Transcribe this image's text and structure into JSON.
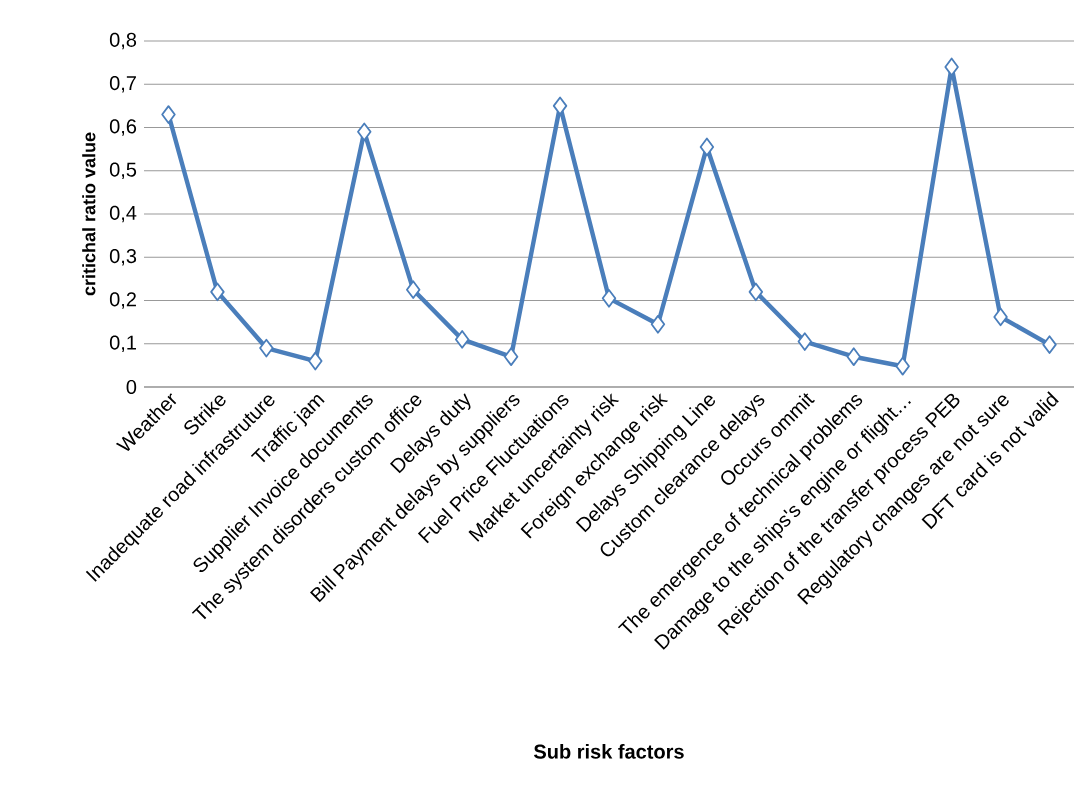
{
  "chart_data": {
    "type": "line",
    "xlabel": "Sub risk factors",
    "ylabel": "critichal ratio value",
    "categories": [
      "Weather",
      "Strike",
      "Inadequate road infrastruture",
      "Traffic jam",
      "Supplier Invoice documents",
      "The system disorders custom office",
      "Delays duty",
      "Bill Payment delays by suppliers",
      "Fuel Price Fluctuations",
      "Market uncertainty risk",
      "Foreign exchange risk",
      "Delays Shipping Line",
      "Custom clearance delays",
      "Occurs ommit",
      "The emergence of technical problems",
      "Damage to the ships's engine or flight…",
      "Rejection of the transfer process PEB",
      "Regulatory changes are not sure",
      "DFT card is not valid"
    ],
    "series": [
      {
        "color": "#4a7ebb",
        "values": [
          0.63,
          0.22,
          0.09,
          0.06,
          0.59,
          0.225,
          0.11,
          0.07,
          0.65,
          0.205,
          0.145,
          0.555,
          0.22,
          0.105,
          0.07,
          0.048,
          0.74,
          0.162,
          0.098
        ]
      }
    ],
    "ylim": [
      0,
      0.8
    ],
    "yticks": [
      {
        "value": 0,
        "label": "0"
      },
      {
        "value": 0.1,
        "label": "0,1"
      },
      {
        "value": 0.2,
        "label": "0,2"
      },
      {
        "value": 0.3,
        "label": "0,3"
      },
      {
        "value": 0.4,
        "label": "0,4"
      },
      {
        "value": 0.5,
        "label": "0,5"
      },
      {
        "value": 0.6,
        "label": "0,6"
      },
      {
        "value": 0.7,
        "label": "0,7"
      },
      {
        "value": 0.8,
        "label": "0,8"
      }
    ],
    "grid": "y",
    "marker": "diamond",
    "line_style": "solid"
  }
}
